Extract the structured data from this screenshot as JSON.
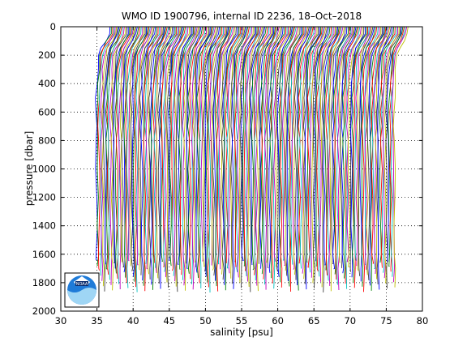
{
  "chart_data": {
    "type": "line",
    "title": "WMO ID 1900796, internal ID 2236, 18–Oct–2018",
    "xlabel": "salinity [psu]",
    "ylabel": "pressure [dbar]",
    "xlim": [
      30,
      80
    ],
    "ylim": [
      0,
      2000
    ],
    "y_reversed": true,
    "grid": "dotted",
    "x_ticks": [
      "30",
      "35",
      "40",
      "45",
      "50",
      "55",
      "60",
      "65",
      "70",
      "75",
      "80"
    ],
    "y_ticks": [
      "0",
      "200",
      "400",
      "600",
      "800",
      "1000",
      "1200",
      "1400",
      "1600",
      "1800",
      "2000"
    ],
    "profile_count": 230,
    "profile_offset_psu": 0.18,
    "base_profile": {
      "pressure": [
        0,
        50,
        100,
        150,
        200,
        300,
        400,
        500,
        600,
        700,
        800,
        1000,
        1200,
        1400,
        1600,
        1700
      ],
      "salinity": [
        36.8,
        36.7,
        36.2,
        35.6,
        35.3,
        35.1,
        35.0,
        34.9,
        34.88,
        34.88,
        34.9,
        34.92,
        34.94,
        34.95,
        34.96,
        34.97
      ]
    },
    "series_colors": [
      "#0000ff",
      "#008000",
      "#ff0000",
      "#00bfbf",
      "#bf00bf",
      "#bfbf00",
      "#404040"
    ],
    "logo": "noaa-logo"
  }
}
